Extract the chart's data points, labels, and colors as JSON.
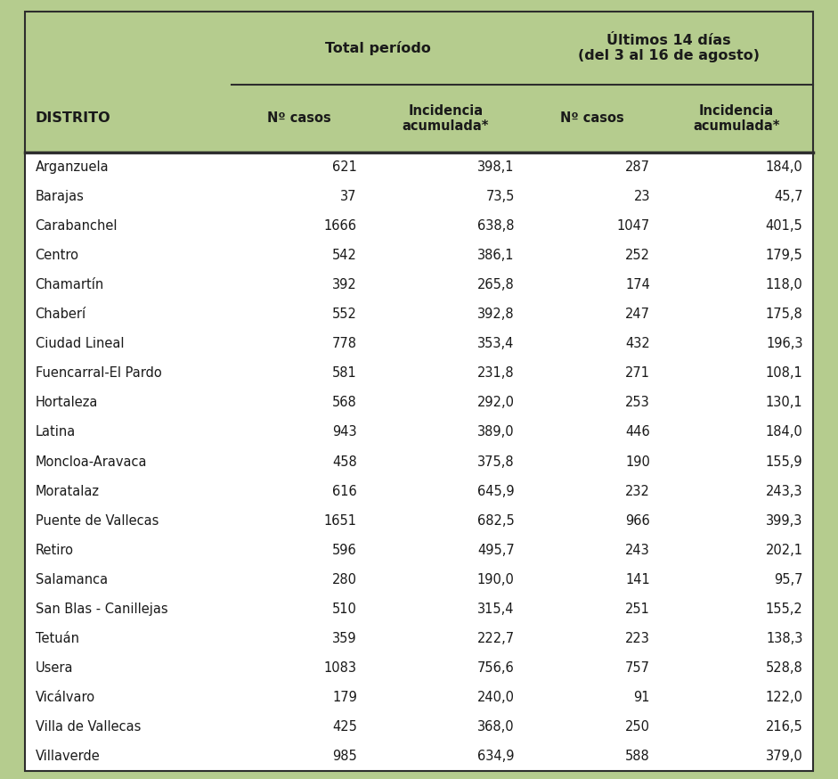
{
  "header_bg_color": "#b5cc8e",
  "table_bg_color": "#ffffff",
  "border_color": "#2d2d2d",
  "text_color": "#1a1a1a",
  "header_text_color": "#1a1a1a",
  "col0_header": "DISTRITO",
  "col_group1_header": "Total período",
  "col_group2_header": "Últimos 14 días\n(del 3 al 16 de agosto)",
  "col1_subheader": "Nº casos",
  "col2_subheader": "Incidencia\nacumulada*",
  "col3_subheader": "Nº casos",
  "col4_subheader": "Incidencia\nacumulada*",
  "districts": [
    "Arganzuela",
    "Barajas",
    "Carabanchel",
    "Centro",
    "Chamartín",
    "Chaberí",
    "Ciudad Lineal",
    "Fuencarral-El Pardo",
    "Hortaleza",
    "Latina",
    "Moncloa-Aravaca",
    "Moratalaz",
    "Puente de Vallecas",
    "Retiro",
    "Salamanca",
    "San Blas - Canillejas",
    "Tetuán",
    "Usera",
    "Vicálvaro",
    "Villa de Vallecas",
    "Villaverde"
  ],
  "total_casos": [
    "621",
    "37",
    "1666",
    "542",
    "392",
    "552",
    "778",
    "581",
    "568",
    "943",
    "458",
    "616",
    "1651",
    "596",
    "280",
    "510",
    "359",
    "1083",
    "179",
    "425",
    "985"
  ],
  "total_incidencia": [
    "398,1",
    "73,5",
    "638,8",
    "386,1",
    "265,8",
    "392,8",
    "353,4",
    "231,8",
    "292,0",
    "389,0",
    "375,8",
    "645,9",
    "682,5",
    "495,7",
    "190,0",
    "315,4",
    "222,7",
    "756,6",
    "240,0",
    "368,0",
    "634,9"
  ],
  "ult_casos": [
    "287",
    "23",
    "1047",
    "252",
    "174",
    "247",
    "432",
    "271",
    "253",
    "446",
    "190",
    "232",
    "966",
    "243",
    "141",
    "251",
    "223",
    "757",
    "91",
    "250",
    "588"
  ],
  "ult_incidencia": [
    "184,0",
    "45,7",
    "401,5",
    "179,5",
    "118,0",
    "175,8",
    "196,3",
    "108,1",
    "130,1",
    "184,0",
    "155,9",
    "243,3",
    "399,3",
    "202,1",
    "95,7",
    "155,2",
    "138,3",
    "528,8",
    "122,0",
    "216,5",
    "379,0"
  ],
  "fig_width": 9.41,
  "fig_height": 8.74,
  "dpi": 100
}
